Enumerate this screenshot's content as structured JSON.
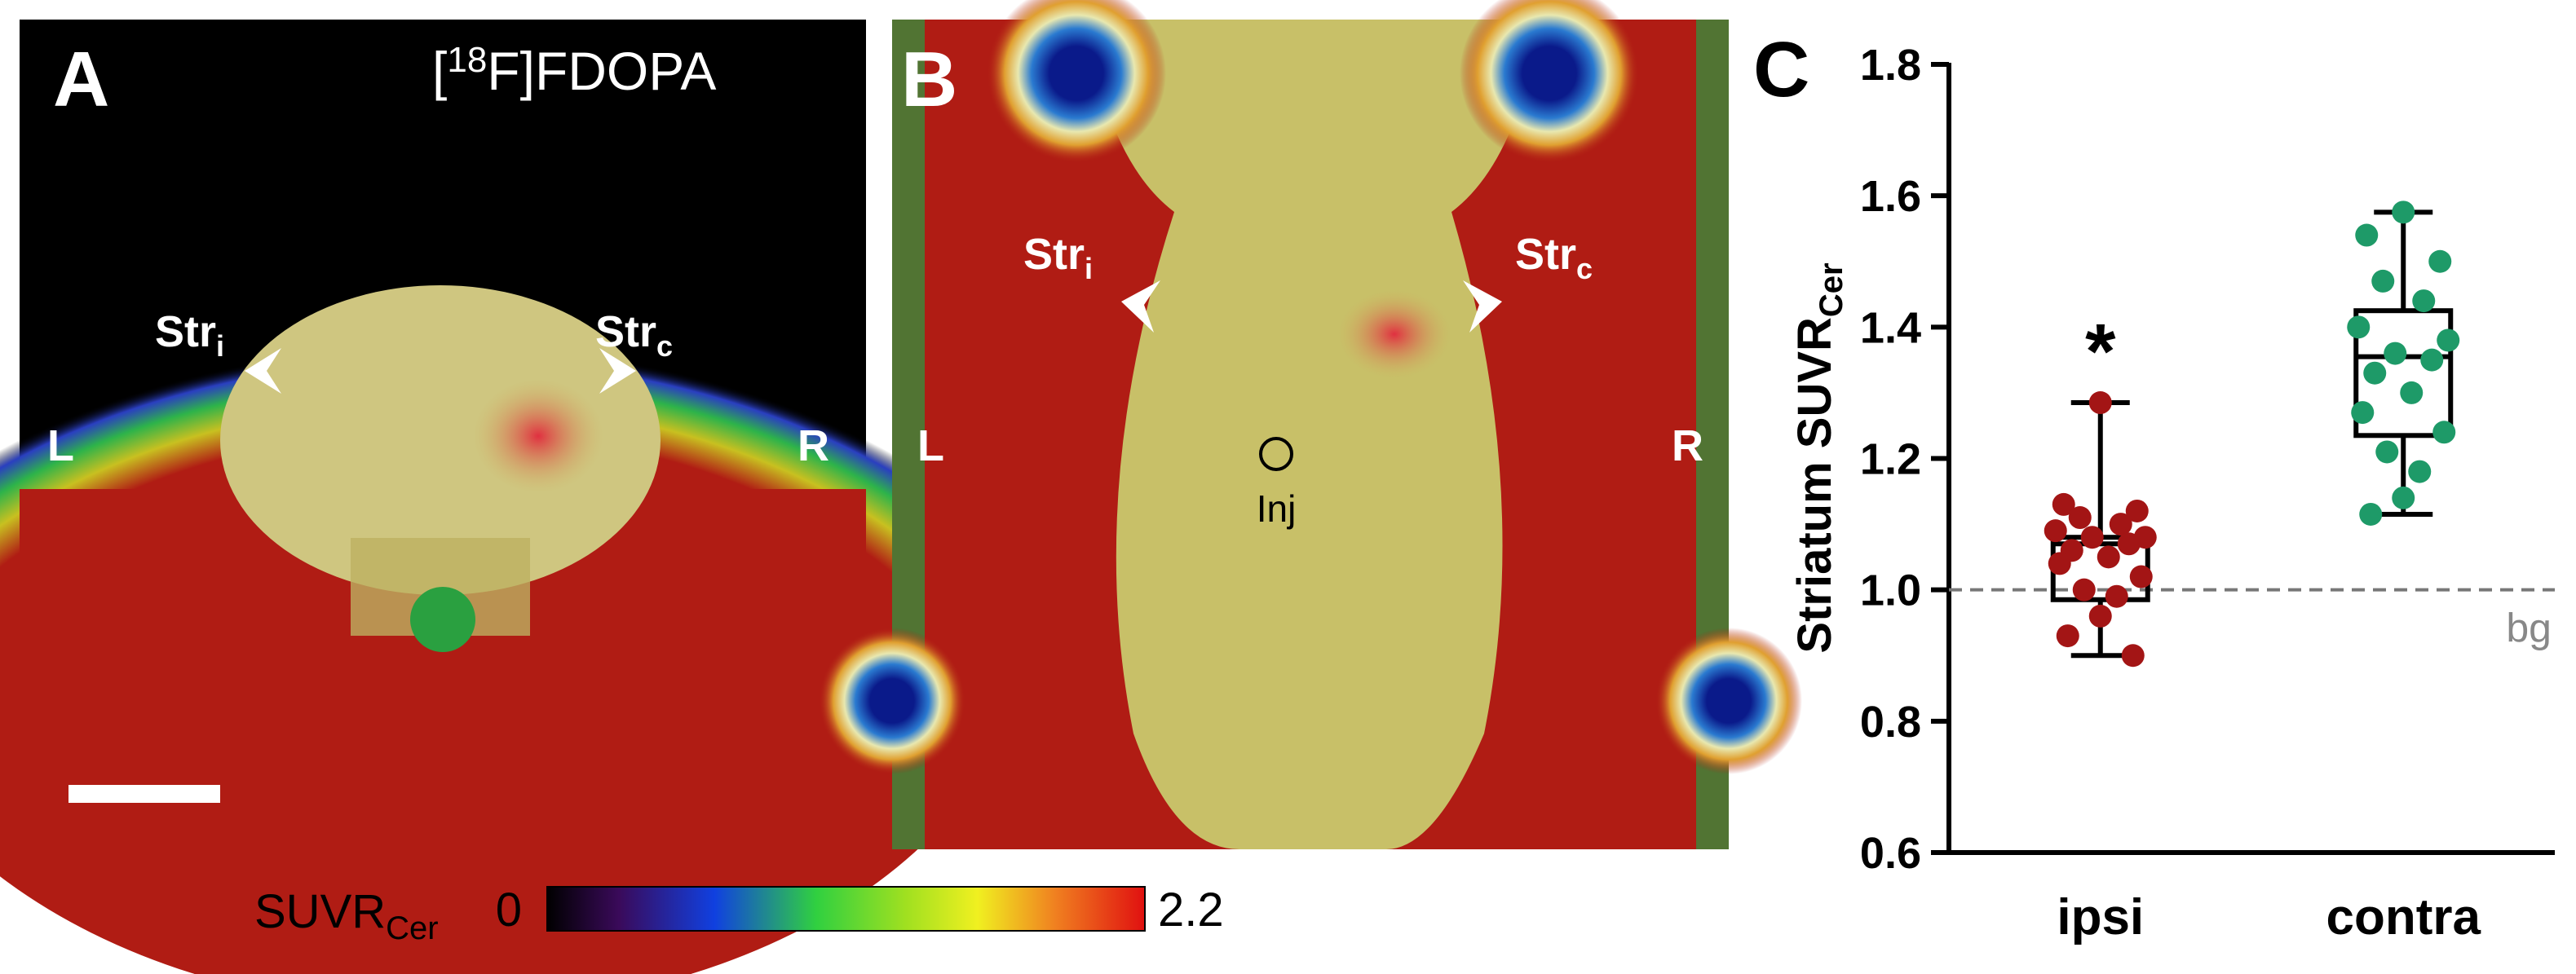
{
  "panels": {
    "a": {
      "letter": "A",
      "tracer_open": "[",
      "tracer_sup": "18",
      "tracer_close": "F]FDOPA",
      "left": "L",
      "right": "R",
      "str_i": "Str",
      "str_i_sub": "i",
      "str_c": "Str",
      "str_c_sub": "c"
    },
    "b": {
      "letter": "B",
      "left": "L",
      "right": "R",
      "str_i": "Str",
      "str_i_sub": "i",
      "str_c": "Str",
      "str_c_sub": "c",
      "injection": "Inj"
    }
  },
  "colorbar": {
    "label": "SUVR",
    "label_sub": "Cer",
    "min": 0,
    "max": 2.2
  },
  "chart_data": {
    "type": "box",
    "panel_label": "C",
    "y_label": "Striatum SUVR",
    "y_label_sub": "Cer",
    "categories": [
      "ipsi",
      "contra"
    ],
    "boxes": [
      {
        "color": "#a31515",
        "min": 0.9,
        "q1": 0.985,
        "median": 1.07,
        "q3": 1.08,
        "max": 1.285,
        "points": [
          1.285,
          1.13,
          1.12,
          1.11,
          1.1,
          1.09,
          1.08,
          1.08,
          1.07,
          1.06,
          1.05,
          1.04,
          1.02,
          1.0,
          0.99,
          0.96,
          0.93,
          0.9
        ]
      },
      {
        "color": "#1e9a68",
        "min": 1.115,
        "q1": 1.235,
        "median": 1.355,
        "q3": 1.425,
        "max": 1.575,
        "points": [
          1.575,
          1.54,
          1.5,
          1.47,
          1.44,
          1.4,
          1.38,
          1.36,
          1.35,
          1.33,
          1.3,
          1.27,
          1.24,
          1.21,
          1.18,
          1.14,
          1.115
        ]
      }
    ],
    "significance": "*",
    "reference_line": {
      "value": 1,
      "label": "bg"
    },
    "ylim": [
      0.6,
      1.8
    ],
    "yticks": [
      0.6,
      0.8,
      {
        "value": 1,
        "label": "1.0"
      },
      1.2,
      1.4,
      1.6,
      1.8
    ]
  }
}
